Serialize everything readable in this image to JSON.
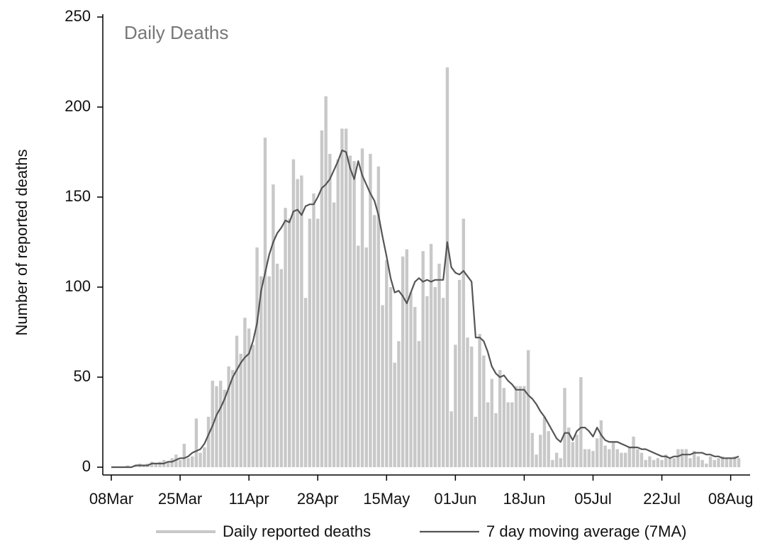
{
  "chart_data": {
    "type": "bar-line",
    "title": "Daily Deaths",
    "y_label": "Number of reported deaths",
    "categories": [
      "08Mar",
      null,
      null,
      null,
      null,
      null,
      null,
      null,
      null,
      null,
      null,
      null,
      null,
      null,
      null,
      null,
      null,
      "25Mar",
      null,
      null,
      null,
      null,
      null,
      null,
      null,
      null,
      null,
      null,
      null,
      null,
      null,
      null,
      null,
      null,
      "11Apr",
      null,
      null,
      null,
      null,
      null,
      null,
      null,
      null,
      null,
      null,
      null,
      null,
      null,
      null,
      null,
      null,
      "28Apr",
      null,
      null,
      null,
      null,
      null,
      null,
      null,
      null,
      null,
      null,
      null,
      null,
      null,
      null,
      null,
      null,
      "15May",
      null,
      null,
      null,
      null,
      null,
      null,
      null,
      null,
      null,
      null,
      null,
      null,
      null,
      null,
      null,
      null,
      "01Jun",
      null,
      null,
      null,
      null,
      null,
      null,
      null,
      null,
      null,
      null,
      null,
      null,
      null,
      null,
      null,
      null,
      "18Jun",
      null,
      null,
      null,
      null,
      null,
      null,
      null,
      null,
      null,
      null,
      null,
      null,
      null,
      null,
      null,
      null,
      "05Jul",
      null,
      null,
      null,
      null,
      null,
      null,
      null,
      null,
      null,
      null,
      null,
      null,
      null,
      null,
      null,
      null,
      "22Jul",
      null,
      null,
      null,
      null,
      null,
      null,
      null,
      null,
      null,
      null,
      null,
      null,
      null,
      null,
      null,
      null,
      "08Aug",
      null,
      null
    ],
    "series": [
      {
        "name": "Daily reported deaths",
        "kind": "bar",
        "color": "#c8c8c8",
        "values": [
          0,
          0,
          0,
          0,
          1,
          0,
          1,
          2,
          1,
          2,
          3,
          2,
          3,
          4,
          3,
          5,
          7,
          4,
          13,
          5,
          6,
          27,
          8,
          11,
          28,
          48,
          45,
          48,
          43,
          56,
          54,
          73,
          63,
          83,
          77,
          68,
          122,
          106,
          183,
          106,
          157,
          113,
          110,
          144,
          138,
          171,
          160,
          162,
          94,
          138,
          152,
          138,
          187,
          206,
          174,
          147,
          171,
          188,
          188,
          173,
          170,
          123,
          177,
          122,
          174,
          140,
          167,
          90,
          115,
          100,
          58,
          70,
          117,
          121,
          97,
          89,
          70,
          120,
          95,
          124,
          100,
          113,
          94,
          222,
          31,
          68,
          104,
          138,
          72,
          67,
          28,
          74,
          62,
          36,
          49,
          30,
          54,
          44,
          36,
          36,
          45,
          45,
          45,
          65,
          19,
          7,
          18,
          28,
          20,
          4,
          8,
          5,
          44,
          22,
          14,
          18,
          50,
          10,
          10,
          9,
          16,
          26,
          12,
          10,
          14,
          10,
          8,
          8,
          11,
          17,
          10,
          8,
          4,
          6,
          4,
          5,
          4,
          7,
          5,
          5,
          10,
          10,
          10,
          5,
          9,
          6,
          4,
          2,
          6,
          4,
          5,
          6,
          5,
          5,
          6,
          5
        ]
      },
      {
        "name": "7 day moving average (7MA)",
        "kind": "line",
        "color": "#555555",
        "values": [
          0,
          0,
          0,
          0,
          0,
          0,
          1,
          1,
          1,
          1,
          2,
          2,
          2,
          2,
          3,
          3,
          4,
          5,
          5,
          6,
          8,
          9,
          10,
          13,
          18,
          23,
          29,
          33,
          38,
          44,
          50,
          54,
          58,
          61,
          63,
          70,
          80,
          98,
          108,
          118,
          125,
          130,
          133,
          137,
          136,
          142,
          143,
          140,
          145,
          146,
          146,
          150,
          155,
          157,
          160,
          165,
          170,
          176,
          175,
          166,
          160,
          170,
          162,
          157,
          152,
          148,
          140,
          128,
          117,
          105,
          97,
          98,
          95,
          91,
          97,
          103,
          105,
          103,
          104,
          103,
          104,
          104,
          104,
          125,
          111,
          108,
          107,
          109,
          106,
          103,
          72,
          72,
          70,
          64,
          56,
          52,
          50,
          51,
          48,
          46,
          43,
          43,
          43,
          40,
          38,
          35,
          31,
          28,
          24,
          20,
          16,
          14,
          19,
          19,
          15,
          20,
          22,
          22,
          20,
          17,
          22,
          18,
          15,
          14,
          14,
          14,
          13,
          12,
          11,
          11,
          11,
          10,
          10,
          9,
          8,
          7,
          6,
          6,
          5,
          6,
          6,
          7,
          7,
          7,
          8,
          8,
          8,
          7,
          7,
          6,
          6,
          5,
          5,
          5,
          5,
          6
        ]
      }
    ],
    "ylim": [
      0,
      250
    ],
    "yticks": [
      0,
      50,
      100,
      150,
      200,
      250
    ]
  }
}
